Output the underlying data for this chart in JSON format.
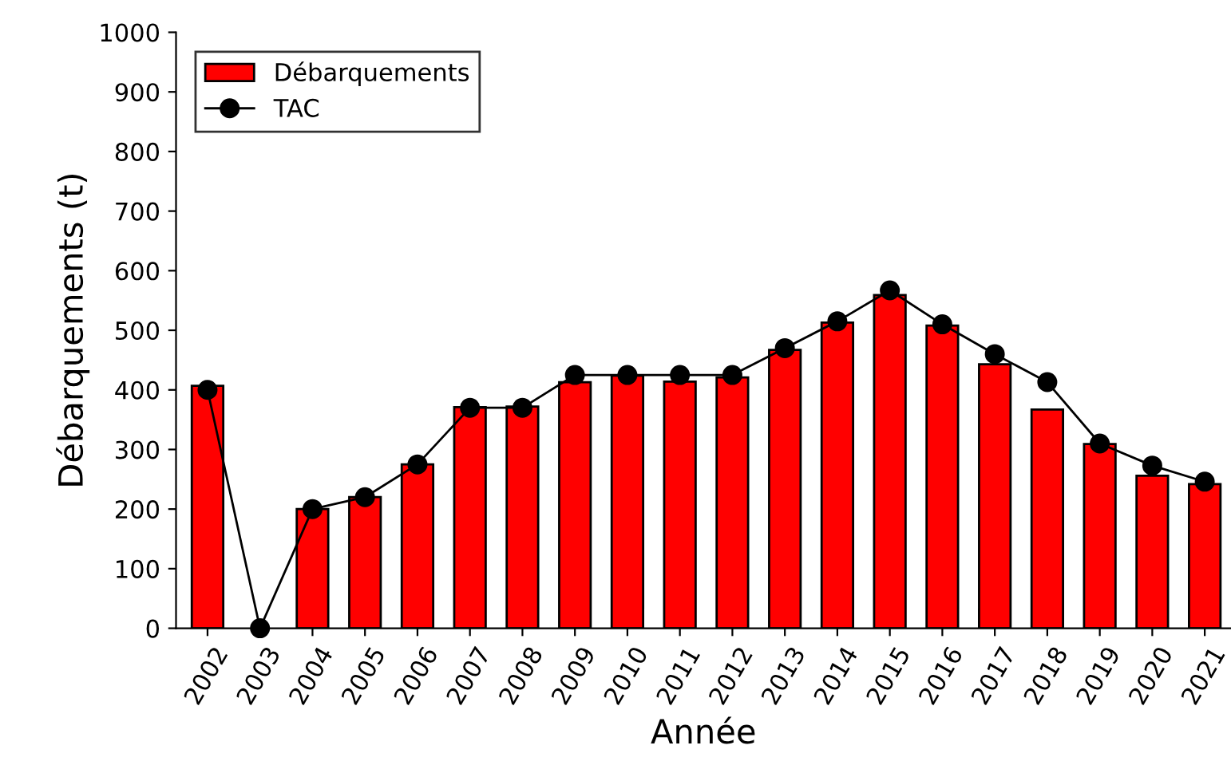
{
  "chart_data": {
    "type": "bar",
    "xlabel": "Année",
    "ylabel": "Débarquements (t)",
    "categories": [
      "2002",
      "2003",
      "2004",
      "2005",
      "2006",
      "2007",
      "2008",
      "2009",
      "2010",
      "2011",
      "2012",
      "2013",
      "2014",
      "2015",
      "2016",
      "2017",
      "2018",
      "2019",
      "2020",
      "2021"
    ],
    "series": [
      {
        "name": "Débarquements",
        "color": "#ff0000",
        "values": [
          407,
          null,
          200,
          220,
          275,
          371,
          372,
          413,
          424,
          414,
          421,
          467,
          513,
          559,
          508,
          443,
          367,
          309,
          256,
          242
        ]
      },
      {
        "name": "TAC",
        "type": "line",
        "color": "#000000",
        "marker": "circle",
        "line_style": "solid",
        "values": [
          400,
          0,
          200,
          220,
          275,
          370,
          370,
          425,
          425,
          425,
          425,
          470,
          515,
          567,
          510,
          460,
          413,
          310,
          273,
          246
        ]
      }
    ],
    "ylim": [
      0,
      1000
    ],
    "yticks": [
      0,
      100,
      200,
      300,
      400,
      500,
      600,
      700,
      800,
      900,
      1000
    ],
    "grid": false,
    "legend": "top left"
  }
}
